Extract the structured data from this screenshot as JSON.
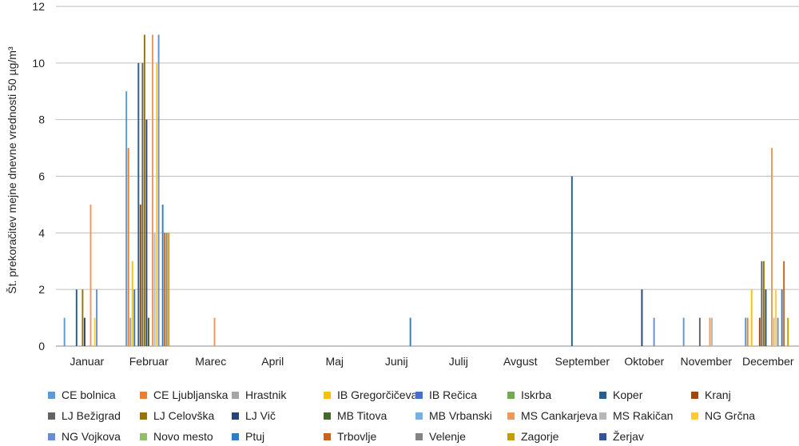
{
  "chart_data": {
    "type": "bar",
    "ylabel": "Št. prekoračitev mejne dnevne vrednosti 50 µg/m³",
    "ylim": [
      0,
      12
    ],
    "yticks": [
      0,
      2,
      4,
      6,
      8,
      10,
      12
    ],
    "grid": true,
    "legend_position": "bottom",
    "categories": [
      "Januar",
      "Februar",
      "Marec",
      "April",
      "Maj",
      "Junij",
      "Julij",
      "Avgust",
      "September",
      "Oktober",
      "November",
      "December"
    ],
    "series": [
      {
        "name": "CE bolnica",
        "color": "#5B9BD5",
        "values": [
          1,
          9,
          0,
          0,
          0,
          0,
          0,
          0,
          0,
          0,
          1,
          1
        ]
      },
      {
        "name": "CE Ljubljanska",
        "color": "#ED7D31",
        "values": [
          0,
          7,
          0,
          0,
          0,
          0,
          0,
          0,
          0,
          0,
          0,
          1
        ]
      },
      {
        "name": "Hrastnik",
        "color": "#A5A5A5",
        "values": [
          0,
          1,
          0,
          0,
          0,
          0,
          0,
          0,
          0,
          0,
          0,
          0
        ]
      },
      {
        "name": "IB Gregorčičeva",
        "color": "#FFC000",
        "values": [
          0,
          3,
          0,
          0,
          0,
          0,
          0,
          0,
          0,
          0,
          0,
          2
        ]
      },
      {
        "name": "IB Rečica",
        "color": "#4472C4",
        "values": [
          0,
          2,
          0,
          0,
          0,
          0,
          0,
          0,
          0,
          0,
          0,
          0
        ]
      },
      {
        "name": "Iskrba",
        "color": "#70AD47",
        "values": [
          0,
          0,
          0,
          0,
          0,
          0,
          0,
          0,
          0,
          0,
          0,
          0
        ]
      },
      {
        "name": "Koper",
        "color": "#255E91",
        "values": [
          2,
          10,
          0,
          0,
          0,
          0,
          0,
          0,
          6,
          0,
          0,
          0
        ]
      },
      {
        "name": "Kranj",
        "color": "#9E480E",
        "values": [
          0,
          5,
          0,
          0,
          0,
          0,
          0,
          0,
          0,
          0,
          0,
          1
        ]
      },
      {
        "name": "LJ Bežigrad",
        "color": "#636363",
        "values": [
          0,
          10,
          0,
          0,
          0,
          0,
          0,
          0,
          0,
          0,
          1,
          3
        ]
      },
      {
        "name": "LJ Celovška",
        "color": "#997300",
        "values": [
          2,
          11,
          0,
          0,
          0,
          0,
          0,
          0,
          0,
          0,
          0,
          3
        ]
      },
      {
        "name": "LJ Vič",
        "color": "#264478",
        "values": [
          1,
          8,
          0,
          0,
          0,
          0,
          0,
          0,
          0,
          2,
          0,
          2
        ]
      },
      {
        "name": "MB Titova",
        "color": "#43682B",
        "values": [
          0,
          1,
          0,
          0,
          0,
          0,
          0,
          0,
          0,
          0,
          0,
          0
        ]
      },
      {
        "name": "MB Vrbanski",
        "color": "#7CAFDD",
        "values": [
          0,
          0,
          0,
          0,
          0,
          0,
          0,
          0,
          0,
          0,
          0,
          0
        ]
      },
      {
        "name": "MS Cankarjeva",
        "color": "#F1975A",
        "values": [
          5,
          11,
          1,
          0,
          0,
          0,
          0,
          0,
          0,
          0,
          1,
          7
        ]
      },
      {
        "name": "MS Rakičan",
        "color": "#B7B7B7",
        "values": [
          0,
          4,
          0,
          0,
          0,
          0,
          0,
          0,
          0,
          0,
          1,
          1
        ]
      },
      {
        "name": "NG Grčna",
        "color": "#FFCD33",
        "values": [
          1,
          10,
          0,
          0,
          0,
          0,
          0,
          0,
          0,
          0,
          0,
          2
        ]
      },
      {
        "name": "NG Vojkova",
        "color": "#698ED0",
        "values": [
          2,
          11,
          0,
          0,
          0,
          0,
          0,
          0,
          0,
          1,
          0,
          1
        ]
      },
      {
        "name": "Novo mesto",
        "color": "#8CC168",
        "values": [
          0,
          0,
          0,
          0,
          0,
          0,
          0,
          0,
          0,
          0,
          0,
          0
        ]
      },
      {
        "name": "Ptuj",
        "color": "#327DC2",
        "values": [
          0,
          5,
          0,
          0,
          0,
          1,
          0,
          0,
          0,
          0,
          0,
          2
        ]
      },
      {
        "name": "Trbovlje",
        "color": "#D26012",
        "values": [
          0,
          4,
          0,
          0,
          0,
          0,
          0,
          0,
          0,
          0,
          0,
          3
        ]
      },
      {
        "name": "Velenje",
        "color": "#848484",
        "values": [
          0,
          4,
          0,
          0,
          0,
          0,
          0,
          0,
          0,
          0,
          0,
          0
        ]
      },
      {
        "name": "Zagorje",
        "color": "#CC9A00",
        "values": [
          0,
          4,
          0,
          0,
          0,
          0,
          0,
          0,
          0,
          0,
          0,
          1
        ]
      },
      {
        "name": "Žerjav",
        "color": "#2E5597",
        "values": [
          0,
          0,
          0,
          0,
          0,
          0,
          0,
          0,
          0,
          0,
          0,
          0
        ]
      }
    ]
  }
}
